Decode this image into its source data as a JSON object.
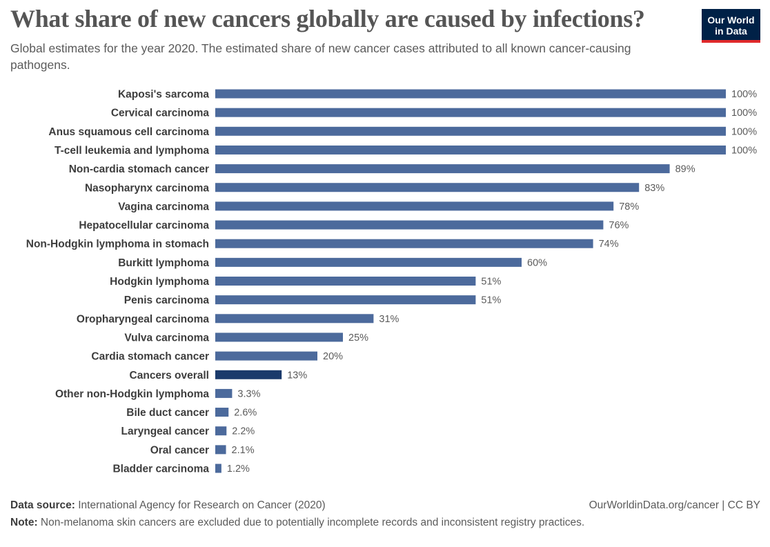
{
  "title": "What share of new cancers globally are caused by infections?",
  "subtitle": "Global estimates for the year 2020. The estimated share of new cancer cases attributed to all known cancer-causing pathogens.",
  "logo": {
    "line1": "Our World",
    "line2": "in Data"
  },
  "footer": {
    "source_label": "Data source:",
    "source_text": "International Agency for Research on Cancer (2020)",
    "note_label": "Note:",
    "note_text": "Non-melanoma skin cancers are excluded due to potentially incomplete records and inconsistent registry practices.",
    "attribution": "OurWorldinData.org/cancer | CC BY"
  },
  "colors": {
    "bar": "#4c6a9c",
    "highlight": "#1a3a6b",
    "logo_bg": "#002147",
    "logo_accent": "#e0292b"
  },
  "chart_data": {
    "type": "bar",
    "orientation": "horizontal",
    "categories": [
      "Kaposi's sarcoma",
      "Cervical carcinoma",
      "Anus squamous cell carcinoma",
      "T-cell leukemia and lymphoma",
      "Non-cardia stomach cancer",
      "Nasopharynx carcinoma",
      "Vagina carcinoma",
      "Hepatocellular carcinoma",
      "Non-Hodgkin lymphoma in stomach",
      "Burkitt lymphoma",
      "Hodgkin lymphoma",
      "Penis carcinoma",
      "Oropharyngeal carcinoma",
      "Vulva carcinoma",
      "Cardia stomach cancer",
      "Cancers overall",
      "Other non-Hodgkin lymphoma",
      "Bile duct cancer",
      "Laryngeal cancer",
      "Oral cancer",
      "Bladder carcinoma"
    ],
    "values": [
      100,
      100,
      100,
      100,
      89,
      83,
      78,
      76,
      74,
      60,
      51,
      51,
      31,
      25,
      20,
      13,
      3.3,
      2.6,
      2.2,
      2.1,
      1.2
    ],
    "labels": [
      "100%",
      "100%",
      "100%",
      "100%",
      "89%",
      "83%",
      "78%",
      "76%",
      "74%",
      "60%",
      "51%",
      "51%",
      "31%",
      "25%",
      "20%",
      "13%",
      "3.3%",
      "2.6%",
      "2.2%",
      "2.1%",
      "1.2%"
    ],
    "highlight": "Cancers overall",
    "unit": "%",
    "xlim": [
      0,
      100
    ],
    "grid": false,
    "legend": "none"
  }
}
